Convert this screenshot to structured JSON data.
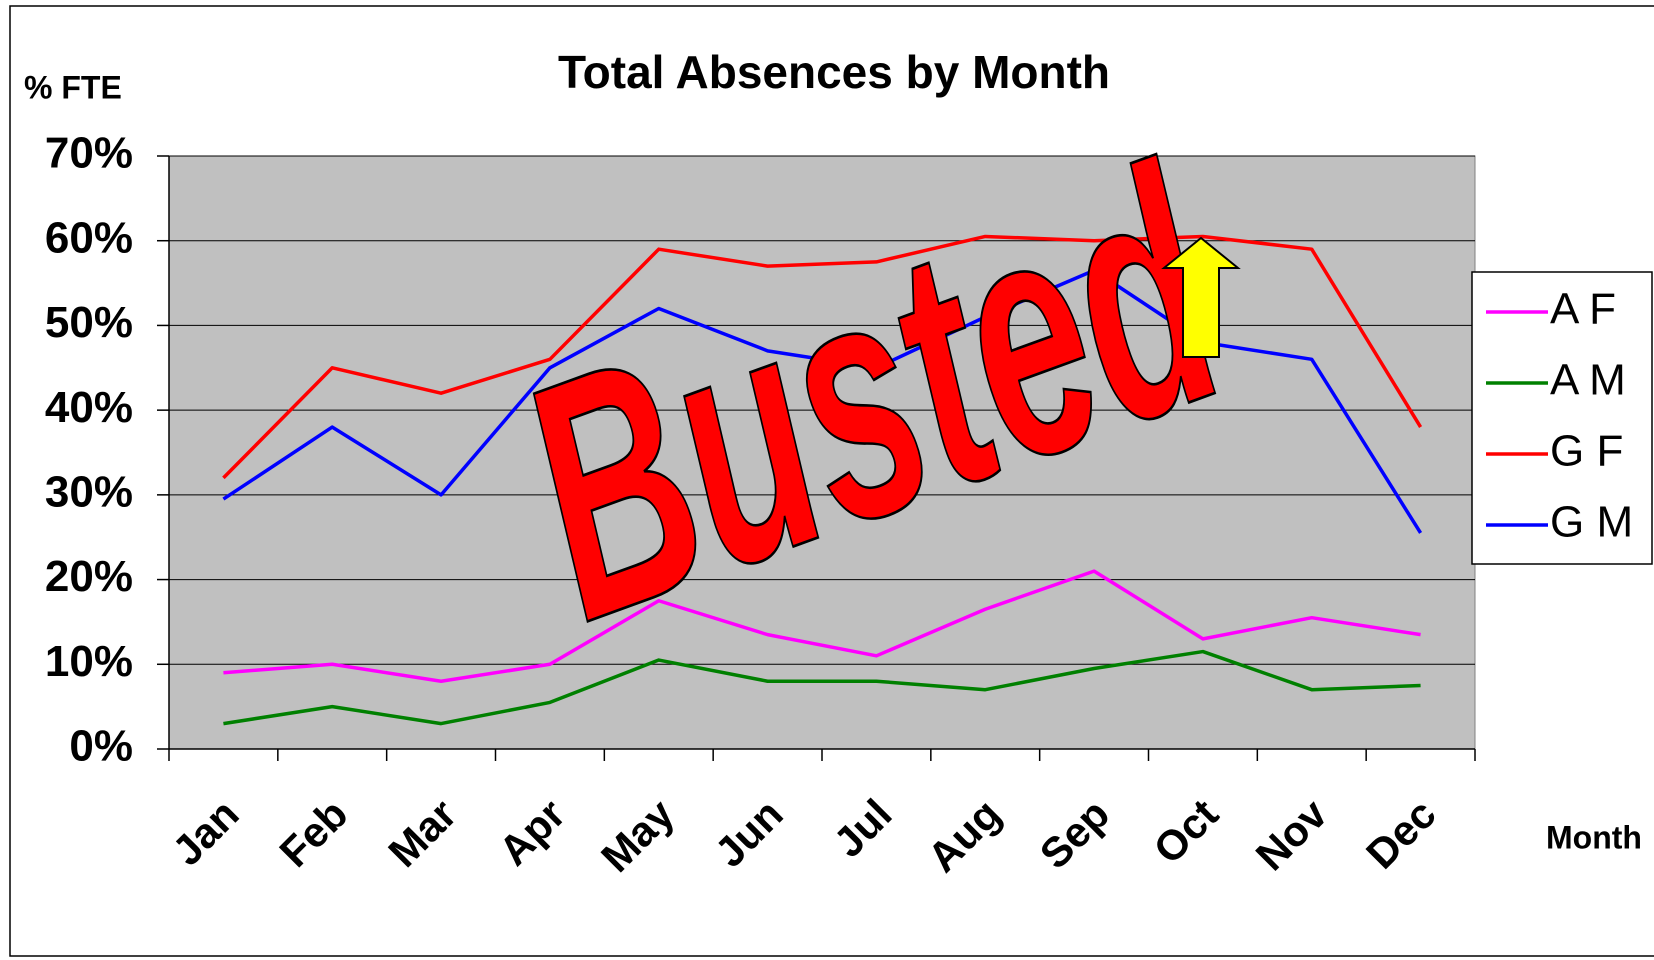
{
  "chart_data": {
    "type": "line",
    "title": "Total Absences by Month",
    "y_label": "% FTE",
    "x_label": "Month",
    "stamp": "Busted",
    "categories": [
      "Jan",
      "Feb",
      "Mar",
      "Apr",
      "May",
      "Jun",
      "Jul",
      "Aug",
      "Sep",
      "Oct",
      "Nov",
      "Dec"
    ],
    "series": [
      {
        "name": "A F",
        "color": "#ff00ff",
        "values": [
          9,
          10,
          8,
          10,
          17.5,
          13.5,
          11,
          16.5,
          21,
          13,
          15.5,
          13.5
        ]
      },
      {
        "name": "A M",
        "color": "#008000",
        "values": [
          3,
          5,
          3,
          5.5,
          10.5,
          8,
          8,
          7,
          9.5,
          11.5,
          7,
          7.5
        ]
      },
      {
        "name": "G F",
        "color": "#ff0000",
        "values": [
          32,
          45,
          42,
          46,
          59,
          57,
          57.5,
          60.5,
          60,
          60.5,
          59,
          38
        ]
      },
      {
        "name": "G M",
        "color": "#0000ff",
        "values": [
          29.5,
          38,
          30,
          45,
          52,
          47,
          45,
          51,
          56.5,
          48,
          46,
          25.5
        ]
      }
    ],
    "ylim": [
      0,
      70
    ],
    "yticks": [
      {
        "value": 0,
        "label": "0%"
      },
      {
        "value": 10,
        "label": "10%"
      },
      {
        "value": 20,
        "label": "20%"
      },
      {
        "value": 30,
        "label": "30%"
      },
      {
        "value": 40,
        "label": "40%"
      },
      {
        "value": 50,
        "label": "50%"
      },
      {
        "value": 60,
        "label": "60%"
      },
      {
        "value": 70,
        "label": "70%"
      }
    ],
    "grid": true,
    "legend": "right",
    "plot_background": "#c0c0c0"
  }
}
